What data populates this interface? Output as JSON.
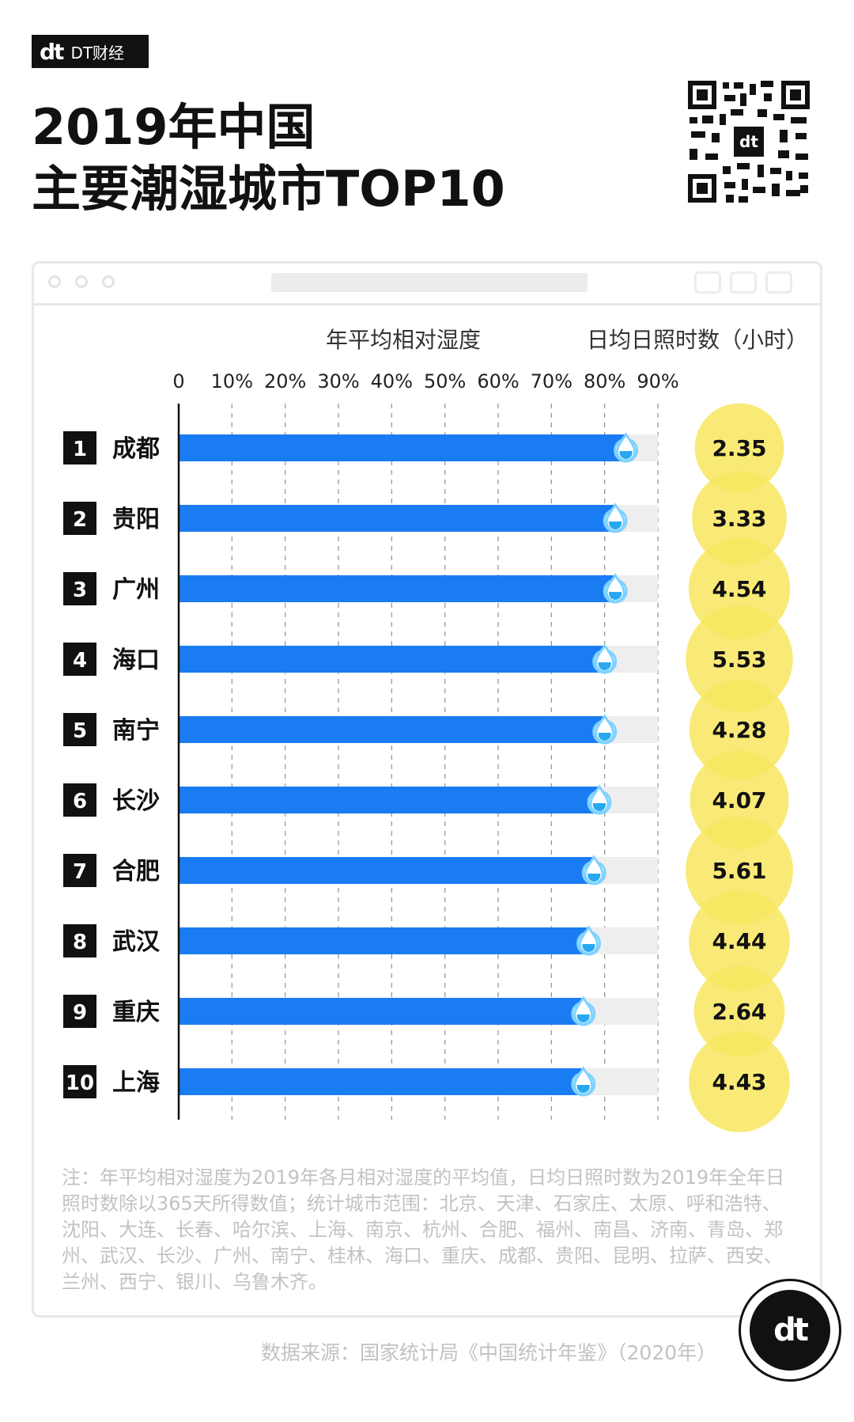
{
  "brand": {
    "mark": "dt",
    "name": "DT财经"
  },
  "title": {
    "line1": "2019年中国",
    "line2": "主要潮湿城市TOP10"
  },
  "legend": {
    "humidity_title": "年平均相对湿度",
    "sunshine_title": "日均日照时数（小时）"
  },
  "colors": {
    "bar": "#1a7cf2",
    "track": "#eeeeee",
    "bubble": "#f8e65f",
    "rank_bg": "#111111"
  },
  "chart_data": {
    "type": "bar",
    "orientation": "horizontal",
    "title": "年平均相对湿度",
    "xlabel": "年平均相对湿度",
    "x_ticks": [
      "0",
      "10%",
      "20%",
      "30%",
      "40%",
      "50%",
      "60%",
      "70%",
      "80%",
      "90%"
    ],
    "xlim": [
      0,
      90
    ],
    "grid": true,
    "categories": [
      "成都",
      "贵阳",
      "广州",
      "海口",
      "南宁",
      "长沙",
      "合肥",
      "武汉",
      "重庆",
      "上海"
    ],
    "ranks": [
      "1",
      "2",
      "3",
      "4",
      "5",
      "6",
      "7",
      "8",
      "9",
      "10"
    ],
    "series": [
      {
        "name": "年平均相对湿度",
        "unit": "%",
        "values": [
          84,
          82,
          82,
          80,
          80,
          79,
          78,
          77,
          76,
          76
        ]
      },
      {
        "name": "日均日照时数（小时）",
        "values": [
          2.35,
          3.33,
          4.54,
          5.53,
          4.28,
          4.07,
          5.61,
          4.44,
          2.64,
          4.43
        ],
        "labels": [
          "2.35",
          "3.33",
          "4.54",
          "5.53",
          "4.28",
          "4.07",
          "5.61",
          "4.44",
          "2.64",
          "4.43"
        ]
      }
    ]
  },
  "note": "注：年平均相对湿度为2019年各月相对湿度的平均值，日均日照时数为2019年全年日照时数除以365天所得数值；统计城市范围：北京、天津、石家庄、太原、呼和浩特、沈阳、大连、长春、哈尔滨、上海、南京、杭州、合肥、福州、南昌、济南、青岛、郑州、武汉、长沙、广州、南宁、桂林、海口、重庆、成都、贵阳、昆明、拉萨、西安、兰州、西宁、银川、乌鲁木齐。",
  "source": "数据来源：国家统计局《中国统计年鉴》（2020年）"
}
